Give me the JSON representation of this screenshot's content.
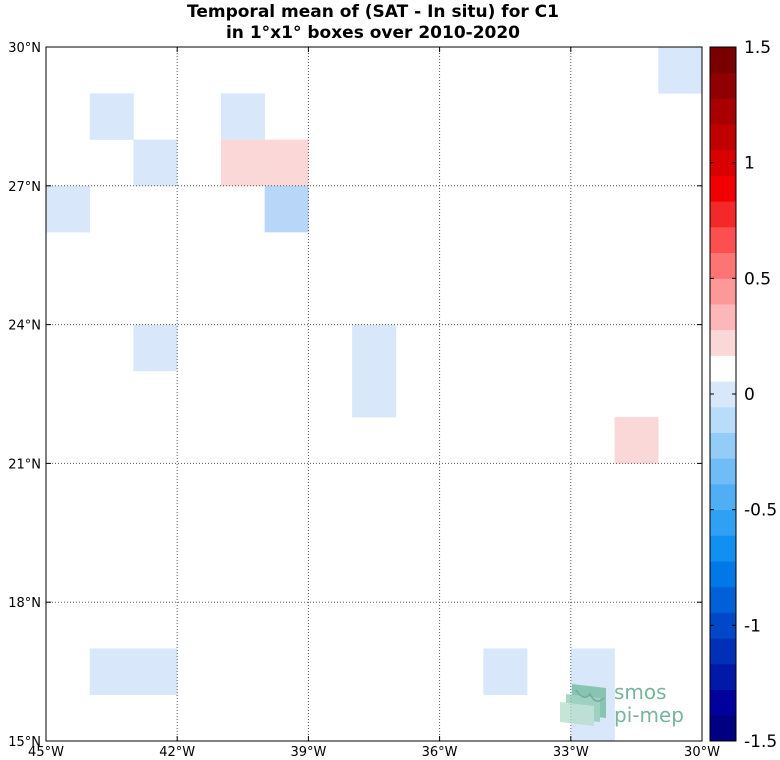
{
  "title": {
    "line1": "Temporal mean of (SAT - In situ) for C1",
    "line2": "in 1°x1° boxes over 2010-2020"
  },
  "map": {
    "lon_range": [
      -45,
      -30
    ],
    "lat_range": [
      15,
      30
    ],
    "grid": "dotted",
    "x_ticks": [
      {
        "value": -45,
        "label": "45°W"
      },
      {
        "value": -42,
        "label": "42°W"
      },
      {
        "value": -39,
        "label": "39°W"
      },
      {
        "value": -36,
        "label": "36°W"
      },
      {
        "value": -33,
        "label": "33°W"
      },
      {
        "value": -30,
        "label": "30°W"
      }
    ],
    "y_ticks": [
      {
        "value": 15,
        "label": "15°N"
      },
      {
        "value": 18,
        "label": "18°N"
      },
      {
        "value": 21,
        "label": "21°N"
      },
      {
        "value": 24,
        "label": "24°N"
      },
      {
        "value": 27,
        "label": "27°N"
      },
      {
        "value": 30,
        "label": "30°N"
      }
    ],
    "cells": [
      {
        "lon": -31,
        "lat": 29,
        "value": -0.1
      },
      {
        "lon": -44,
        "lat": 28,
        "value": -0.1
      },
      {
        "lon": -41,
        "lat": 28,
        "value": -0.1
      },
      {
        "lon": -43,
        "lat": 27,
        "value": -0.1
      },
      {
        "lon": -41,
        "lat": 27,
        "value": 0.1
      },
      {
        "lon": -40,
        "lat": 27,
        "value": 0.1
      },
      {
        "lon": -45,
        "lat": 26,
        "value": -0.1
      },
      {
        "lon": -40,
        "lat": 26,
        "value": -0.3
      },
      {
        "lon": -43,
        "lat": 23,
        "value": -0.1
      },
      {
        "lon": -38,
        "lat": 23,
        "value": -0.1
      },
      {
        "lon": -38,
        "lat": 22,
        "value": -0.1
      },
      {
        "lon": -32,
        "lat": 21,
        "value": 0.1
      },
      {
        "lon": -44,
        "lat": 16,
        "value": -0.1
      },
      {
        "lon": -43,
        "lat": 16,
        "value": -0.1
      },
      {
        "lon": -35,
        "lat": 16,
        "value": -0.1
      },
      {
        "lon": -33,
        "lat": 16,
        "value": -0.1
      },
      {
        "lon": -33,
        "lat": 15,
        "value": -0.1
      }
    ]
  },
  "colorbar": {
    "range": [
      -1.5,
      1.5
    ],
    "ticks": [
      {
        "value": 1.5,
        "label": "1.5"
      },
      {
        "value": 1,
        "label": "1"
      },
      {
        "value": 0.5,
        "label": "0.5"
      },
      {
        "value": 0,
        "label": "0"
      },
      {
        "value": -0.5,
        "label": "-0.5"
      },
      {
        "value": -1,
        "label": "-1"
      },
      {
        "value": -1.5,
        "label": "-1.5"
      }
    ],
    "colors_bottom_to_top": [
      "#000080",
      "#00009c",
      "#0018a8",
      "#0030b8",
      "#0048c8",
      "#0060d8",
      "#0078e8",
      "#1090f0",
      "#30a0f4",
      "#50aef4",
      "#70bcf6",
      "#94ccf8",
      "#b8dcfa",
      "#d8e8fa",
      "#ffffff",
      "#fbd8d8",
      "#fcb8b8",
      "#fc9898",
      "#fc7474",
      "#fc5050",
      "#f42828",
      "#f00000",
      "#d80000",
      "#c00000",
      "#a80000",
      "#900000",
      "#7a0000"
    ]
  },
  "cell_colors": {
    "neg_light": "#d8e8fa",
    "neg_mid": "#b8d6f8",
    "pos_light": "#fbd8d8"
  },
  "logo": {
    "line1": "smos",
    "line2": "pi-mep"
  }
}
